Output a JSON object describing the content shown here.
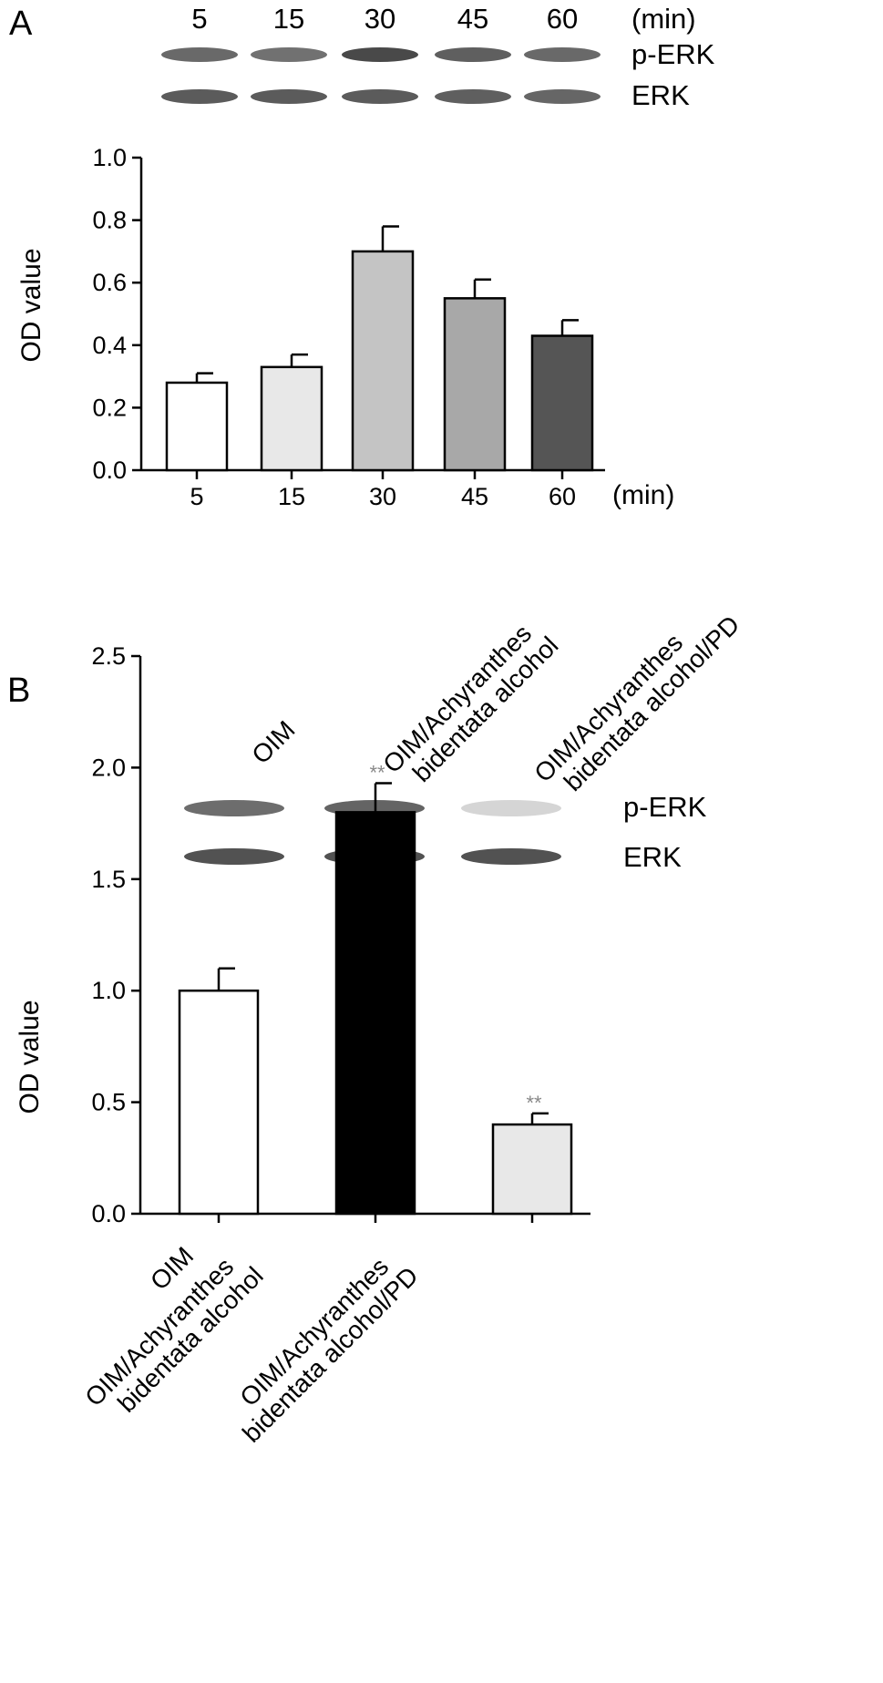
{
  "panels": [
    {
      "letter": "A",
      "blot": {
        "lane_labels": [
          "5",
          "15",
          "30",
          "45",
          "60"
        ],
        "unit_label": "(min)",
        "row_labels": [
          "p-ERK",
          "ERK"
        ],
        "band_intensity": {
          "p-ERK": [
            0.72,
            0.68,
            0.9,
            0.78,
            0.72
          ],
          "ERK": [
            0.8,
            0.8,
            0.8,
            0.78,
            0.74
          ]
        }
      },
      "ylabel": "OD value",
      "x_unit": "(min)"
    },
    {
      "letter": "B",
      "blot": {
        "lane_labels": [
          "OIM",
          "OIM/Achyranthes bidentata alcohol",
          "OIM/Achyranthes bidentata alcohol/PD"
        ],
        "row_labels": [
          "p-ERK",
          "ERK"
        ],
        "band_intensity": {
          "p-ERK": [
            0.7,
            0.75,
            0.12
          ],
          "ERK": [
            0.85,
            0.85,
            0.85
          ]
        }
      },
      "ylabel": "OD value"
    }
  ],
  "chart_data": [
    {
      "type": "bar",
      "categories": [
        "5",
        "15",
        "30",
        "45",
        "60"
      ],
      "values": [
        0.28,
        0.33,
        0.7,
        0.55,
        0.43
      ],
      "errors": [
        0.03,
        0.04,
        0.08,
        0.06,
        0.05
      ],
      "bar_colors": [
        "#ffffff",
        "#e8e8e8",
        "#c4c4c4",
        "#a8a8a8",
        "#555555"
      ],
      "ylabel": "OD value",
      "xlabel": "(min)",
      "ylim": [
        0,
        1.0
      ],
      "yticks": [
        "0.0",
        "0.2",
        "0.4",
        "0.6",
        "0.8",
        "1.0"
      ],
      "grid": false
    },
    {
      "type": "bar",
      "categories": [
        "OIM",
        "OIM/Achyranthes bidentata alcohol",
        "OIM/Achyranthes bidentata alcohol/PD"
      ],
      "category_lines": [
        [
          "OIM"
        ],
        [
          "OIM/Achyranthes",
          "bidentata alcohol"
        ],
        [
          "OIM/Achyranthes",
          "bidentata alcohol/PD"
        ]
      ],
      "values": [
        1.0,
        1.8,
        0.4
      ],
      "errors": [
        0.1,
        0.13,
        0.05
      ],
      "bar_colors": [
        "#ffffff",
        "#000000",
        "#e8e8e8"
      ],
      "annotations": [
        "",
        "**",
        "**"
      ],
      "ylabel": "OD value",
      "ylim": [
        0,
        2.5
      ],
      "yticks": [
        "0.0",
        "0.5",
        "1.0",
        "1.5",
        "2.0",
        "2.5"
      ],
      "grid": false
    }
  ]
}
